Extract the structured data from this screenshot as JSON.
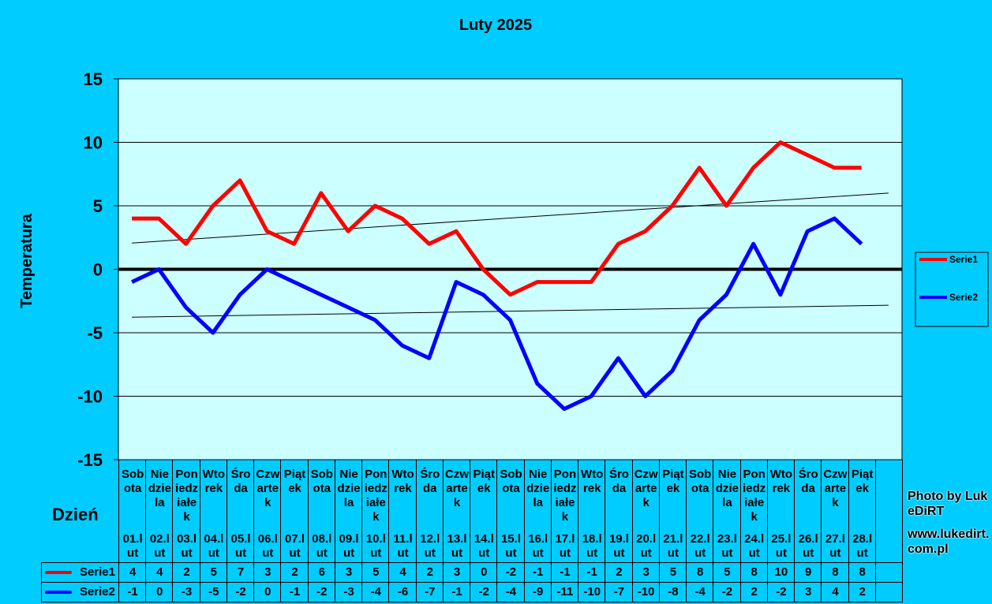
{
  "chart_data": {
    "type": "line",
    "title": "Luty 2025",
    "xlabel": "Dzień",
    "ylabel": "Temperatura",
    "ylim": [
      -15,
      15
    ],
    "yticks": [
      15,
      10,
      5,
      0,
      -5,
      -10,
      -15
    ],
    "grid": true,
    "legend_position": "right",
    "weekdays": [
      "Sobota",
      "Niedziela",
      "Poniedziałek",
      "Wtorek",
      "Środa",
      "Czwartek",
      "Piątek",
      "Sobota",
      "Niedziela",
      "Poniedziałek",
      "Wtorek",
      "Środa",
      "Czwartek",
      "Piątek",
      "Sobota",
      "Niedziela",
      "Poniedziałek",
      "Wtorek",
      "Środa",
      "Czwartek",
      "Piątek",
      "Sobota",
      "Niedziela",
      "Poniedziałek",
      "Wtorek",
      "Środa",
      "Czwartek",
      "Piątek"
    ],
    "categories": [
      "01.lut",
      "02.lut",
      "03.lut",
      "04.lut",
      "05.lut",
      "06.lut",
      "07.lut",
      "08.lut",
      "09.lut",
      "10.lut",
      "11.lut",
      "12.lut",
      "13.lut",
      "14.lut",
      "15.lut",
      "16.lut",
      "17.lut",
      "18.lut",
      "19.lut",
      "20.lut",
      "21.lut",
      "22.lut",
      "23.lut",
      "24.lut",
      "25.lut",
      "26.lut",
      "27.lut",
      "28.lut"
    ],
    "series": [
      {
        "name": "Serie1",
        "color": "#ff0000",
        "values": [
          4,
          4,
          2,
          5,
          7,
          3,
          2,
          6,
          3,
          5,
          4,
          2,
          3,
          0,
          -2,
          -1,
          -1,
          -1,
          2,
          3,
          5,
          8,
          5,
          8,
          10,
          9,
          8,
          8
        ]
      },
      {
        "name": "Serie2",
        "color": "#0000ff",
        "values": [
          -1,
          0,
          -3,
          -5,
          -2,
          0,
          -1,
          -2,
          -3,
          -4,
          -6,
          -7,
          -1,
          -2,
          -4,
          -9,
          -11,
          -10,
          -7,
          -10,
          -8,
          -4,
          -2,
          2,
          -2,
          3,
          4,
          2
        ]
      }
    ],
    "trendlines": "linear"
  },
  "credit": {
    "line1": "Photo by LukeDiRT",
    "line2": "www.lukedirt.com.pl"
  }
}
